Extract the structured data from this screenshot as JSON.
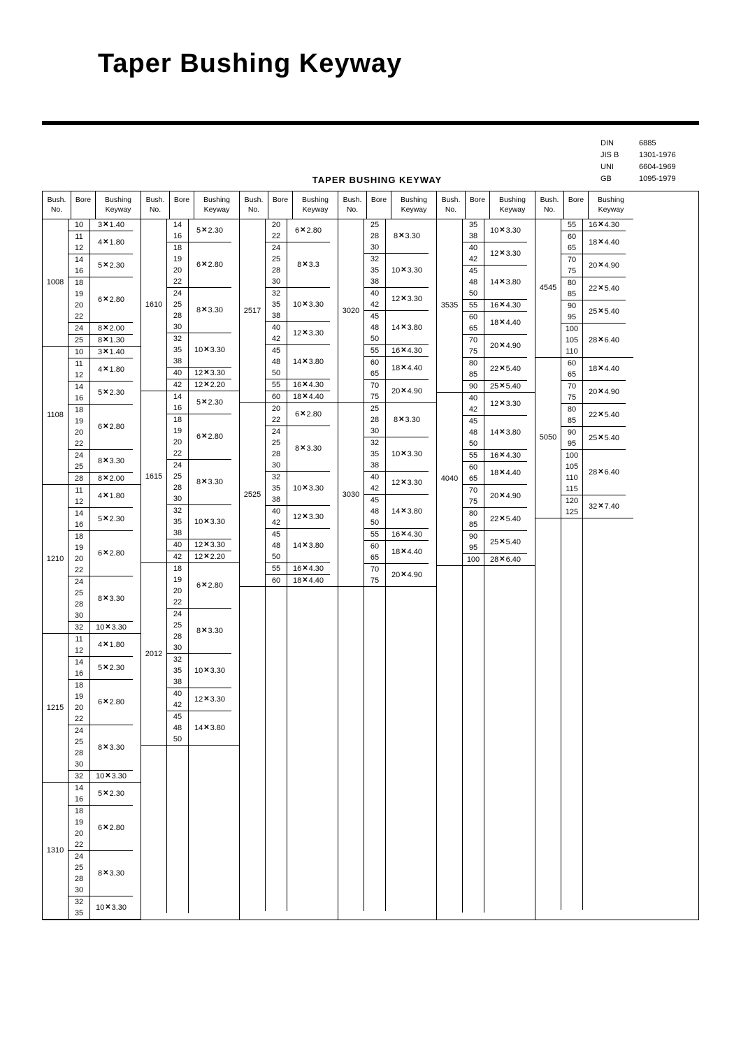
{
  "title": "Taper  Bushing  Keyway",
  "subtitle": "TAPER  BUSHING  KEYWAY",
  "standards": [
    [
      "DIN",
      "6885"
    ],
    [
      "JIS  B",
      "1301-1976"
    ],
    [
      "UNI",
      "6604-1969"
    ],
    [
      "GB",
      "1095-1979"
    ]
  ],
  "headers": {
    "bush": "Bush.\nNo.",
    "bore": "Bore",
    "key": "Bushing\nKeyway"
  },
  "x_glyph": "✕",
  "columns": [
    {
      "blocks": [
        {
          "bush": "1008",
          "groups": [
            {
              "bores": [
                "10"
              ],
              "key": "3x1.40"
            },
            {
              "bores": [
                "11",
                "12"
              ],
              "key": "4x1.80"
            },
            {
              "bores": [
                "14",
                "16"
              ],
              "key": "5x2.30"
            },
            {
              "bores": [
                "18",
                "19",
                "20",
                "22"
              ],
              "key": "6x2.80"
            },
            {
              "bores": [
                "24"
              ],
              "key": "8x2.00"
            },
            {
              "bores": [
                "25"
              ],
              "key": "8x1.30"
            }
          ]
        },
        {
          "bush": "1108",
          "groups": [
            {
              "bores": [
                "10"
              ],
              "key": "3x1.40"
            },
            {
              "bores": [
                "11",
                "12"
              ],
              "key": "4x1.80"
            },
            {
              "bores": [
                "14",
                "16"
              ],
              "key": "5x2.30"
            },
            {
              "bores": [
                "18",
                "19",
                "20",
                "22"
              ],
              "key": "6x2.80"
            },
            {
              "bores": [
                "24",
                "25"
              ],
              "key": "8x3.30"
            },
            {
              "bores": [
                "28"
              ],
              "key": "8x2.00"
            }
          ]
        },
        {
          "bush": "1210",
          "groups": [
            {
              "bores": [
                "11",
                "12"
              ],
              "key": "4x1.80"
            },
            {
              "bores": [
                "14",
                "16"
              ],
              "key": "5x2.30"
            },
            {
              "bores": [
                "18",
                "19",
                "20",
                "22"
              ],
              "key": "6x2.80"
            },
            {
              "bores": [
                "24",
                "25",
                "28",
                "30"
              ],
              "key": "8x3.30"
            },
            {
              "bores": [
                "32"
              ],
              "key": "10x3.30"
            }
          ]
        },
        {
          "bush": "1215",
          "groups": [
            {
              "bores": [
                "11",
                "12"
              ],
              "key": "4x1.80"
            },
            {
              "bores": [
                "14",
                "16"
              ],
              "key": "5x2.30"
            },
            {
              "bores": [
                "18",
                "19",
                "20",
                "22"
              ],
              "key": "6x2.80"
            },
            {
              "bores": [
                "24",
                "25",
                "28",
                "30"
              ],
              "key": "8x3.30"
            },
            {
              "bores": [
                "32"
              ],
              "key": "10x3.30"
            }
          ]
        },
        {
          "bush": "1310",
          "groups": [
            {
              "bores": [
                "14",
                "16"
              ],
              "key": "5x2.30"
            },
            {
              "bores": [
                "18",
                "19",
                "20",
                "22"
              ],
              "key": "6x2.80"
            },
            {
              "bores": [
                "24",
                "25",
                "28",
                "30"
              ],
              "key": "8x3.30"
            },
            {
              "bores": [
                "32",
                "35"
              ],
              "key": "10x3.30"
            }
          ]
        }
      ]
    },
    {
      "blocks": [
        {
          "bush": "1610",
          "groups": [
            {
              "bores": [
                "14",
                "16"
              ],
              "key": "5x2.30"
            },
            {
              "bores": [
                "18",
                "19",
                "20",
                "22"
              ],
              "key": "6x2.80"
            },
            {
              "bores": [
                "24",
                "25",
                "28",
                "30"
              ],
              "key": "8x3.30"
            },
            {
              "bores": [
                "32",
                "35",
                "38"
              ],
              "key": "10x3.30"
            },
            {
              "bores": [
                "40"
              ],
              "key": "12x3.30"
            },
            {
              "bores": [
                "42"
              ],
              "key": "12x2.20"
            }
          ]
        },
        {
          "bush": "1615",
          "groups": [
            {
              "bores": [
                "14",
                "16"
              ],
              "key": "5x2.30"
            },
            {
              "bores": [
                "18",
                "19",
                "20",
                "22"
              ],
              "key": "6x2.80"
            },
            {
              "bores": [
                "24",
                "25",
                "28",
                "30"
              ],
              "key": "8x3.30"
            },
            {
              "bores": [
                "32",
                "35",
                "38"
              ],
              "key": "10x3.30"
            },
            {
              "bores": [
                "40"
              ],
              "key": "12x3.30"
            },
            {
              "bores": [
                "42"
              ],
              "key": "12x2.20"
            }
          ]
        },
        {
          "bush": "2012",
          "groups": [
            {
              "bores": [
                "18",
                "19",
                "20",
                "22"
              ],
              "key": "6x2.80"
            },
            {
              "bores": [
                "24",
                "25",
                "28",
                "30"
              ],
              "key": "8x3.30"
            },
            {
              "bores": [
                "32",
                "35",
                "38"
              ],
              "key": "10x3.30"
            },
            {
              "bores": [
                "40",
                "42"
              ],
              "key": "12x3.30"
            },
            {
              "bores": [
                "45",
                "48",
                "50"
              ],
              "key": "14x3.80"
            }
          ]
        }
      ]
    },
    {
      "blocks": [
        {
          "bush": "2517",
          "groups": [
            {
              "bores": [
                "20",
                "22"
              ],
              "key": "6x2.80"
            },
            {
              "bores": [
                "24",
                "25",
                "28",
                "30"
              ],
              "key": "8x3.3"
            },
            {
              "bores": [
                "32",
                "35",
                "38"
              ],
              "key": "10x3.30"
            },
            {
              "bores": [
                "40",
                "42"
              ],
              "key": "12x3.30"
            },
            {
              "bores": [
                "45",
                "48",
                "50"
              ],
              "key": "14x3.80"
            },
            {
              "bores": [
                "55"
              ],
              "key": "16x4.30"
            },
            {
              "bores": [
                "60"
              ],
              "key": "18x4.40"
            }
          ]
        },
        {
          "bush": "2525",
          "groups": [
            {
              "bores": [
                "20",
                "22"
              ],
              "key": "6x2.80"
            },
            {
              "bores": [
                "24",
                "25",
                "28",
                "30"
              ],
              "key": "8x3.30"
            },
            {
              "bores": [
                "32",
                "35",
                "38"
              ],
              "key": "10x3.30"
            },
            {
              "bores": [
                "40",
                "42"
              ],
              "key": "12x3.30"
            },
            {
              "bores": [
                "45",
                "48",
                "50"
              ],
              "key": "14x3.80"
            },
            {
              "bores": [
                "55"
              ],
              "key": "16x4.30"
            },
            {
              "bores": [
                "60"
              ],
              "key": "18x4.40"
            }
          ]
        }
      ]
    },
    {
      "blocks": [
        {
          "bush": "3020",
          "groups": [
            {
              "bores": [
                "25",
                "28",
                "30"
              ],
              "key": "8x3.30"
            },
            {
              "bores": [
                "32",
                "35",
                "38"
              ],
              "key": "10x3.30"
            },
            {
              "bores": [
                "40",
                "42"
              ],
              "key": "12x3.30"
            },
            {
              "bores": [
                "45",
                "48",
                "50"
              ],
              "key": "14x3.80"
            },
            {
              "bores": [
                "55"
              ],
              "key": "16x4.30"
            },
            {
              "bores": [
                "60",
                "65"
              ],
              "key": "18x4.40"
            },
            {
              "bores": [
                "70",
                "75"
              ],
              "key": "20x4.90"
            }
          ]
        },
        {
          "bush": "3030",
          "groups": [
            {
              "bores": [
                "25",
                "28",
                "30"
              ],
              "key": "8x3.30"
            },
            {
              "bores": [
                "32",
                "35",
                "38"
              ],
              "key": "10x3.30"
            },
            {
              "bores": [
                "40",
                "42"
              ],
              "key": "12x3.30"
            },
            {
              "bores": [
                "45",
                "48",
                "50"
              ],
              "key": "14x3.80"
            },
            {
              "bores": [
                "55"
              ],
              "key": "16x4.30"
            },
            {
              "bores": [
                "60",
                "65"
              ],
              "key": "18x4.40"
            },
            {
              "bores": [
                "70",
                "75"
              ],
              "key": "20x4.90"
            }
          ]
        }
      ]
    },
    {
      "blocks": [
        {
          "bush": "3535",
          "groups": [
            {
              "bores": [
                "35",
                "38"
              ],
              "key": "10x3.30"
            },
            {
              "bores": [
                "40",
                "42"
              ],
              "key": "12x3.30"
            },
            {
              "bores": [
                "45",
                "48",
                "50"
              ],
              "key": "14x3.80"
            },
            {
              "bores": [
                "55"
              ],
              "key": "16x4.30"
            },
            {
              "bores": [
                "60",
                "65"
              ],
              "key": "18x4.40"
            },
            {
              "bores": [
                "70",
                "75"
              ],
              "key": "20x4.90"
            },
            {
              "bores": [
                "80",
                "85"
              ],
              "key": "22x5.40"
            },
            {
              "bores": [
                "90"
              ],
              "key": "25x5.40"
            }
          ]
        },
        {
          "bush": "4040",
          "groups": [
            {
              "bores": [
                "40",
                "42"
              ],
              "key": "12x3.30"
            },
            {
              "bores": [
                "45",
                "48",
                "50"
              ],
              "key": "14x3.80"
            },
            {
              "bores": [
                "55"
              ],
              "key": "16x4.30"
            },
            {
              "bores": [
                "60",
                "65"
              ],
              "key": "18x4.40"
            },
            {
              "bores": [
                "70",
                "75"
              ],
              "key": "20x4.90"
            },
            {
              "bores": [
                "80",
                "85"
              ],
              "key": "22x5.40"
            },
            {
              "bores": [
                "90",
                "95"
              ],
              "key": "25x5.40"
            },
            {
              "bores": [
                "100"
              ],
              "key": "28x6.40"
            }
          ]
        }
      ]
    },
    {
      "blocks": [
        {
          "bush": "4545",
          "groups": [
            {
              "bores": [
                "55"
              ],
              "key": "16x4.30"
            },
            {
              "bores": [
                "60",
                "65"
              ],
              "key": "18x4.40"
            },
            {
              "bores": [
                "70",
                "75"
              ],
              "key": "20x4.90"
            },
            {
              "bores": [
                "80",
                "85"
              ],
              "key": "22x5.40"
            },
            {
              "bores": [
                "90",
                "95"
              ],
              "key": "25x5.40"
            },
            {
              "bores": [
                "100",
                "105",
                "110"
              ],
              "key": "28x6.40"
            }
          ]
        },
        {
          "bush": "5050",
          "groups": [
            {
              "bores": [
                "60",
                "65"
              ],
              "key": "18x4.40"
            },
            {
              "bores": [
                "70",
                "75"
              ],
              "key": "20x4.90"
            },
            {
              "bores": [
                "80",
                "85"
              ],
              "key": "22x5.40"
            },
            {
              "bores": [
                "90",
                "95"
              ],
              "key": "25x5.40"
            },
            {
              "bores": [
                "100",
                "105",
                "110",
                "115"
              ],
              "key": "28x6.40"
            },
            {
              "bores": [
                "120",
                "125"
              ],
              "key": "32x7.40"
            }
          ]
        }
      ]
    }
  ]
}
